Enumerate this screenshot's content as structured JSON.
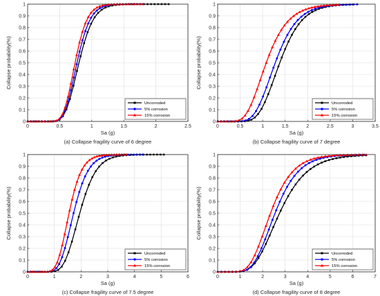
{
  "chart_data": [
    {
      "type": "line",
      "caption": "(a) Collapse fragility curve of 6 degree",
      "xlabel": "Sa (g)",
      "ylabel": "Collapse probability(%)",
      "xlim": [
        0,
        2.5
      ],
      "ylim": [
        0,
        1
      ],
      "xticks": [
        "0",
        "0.5",
        "1",
        "1.5",
        "2",
        "2.5"
      ],
      "yticks": [
        "0",
        "0.1",
        "0.2",
        "0.3",
        "0.4",
        "0.5",
        "0.6",
        "0.7",
        "0.8",
        "0.9",
        "1"
      ],
      "grid": true,
      "legend_position": "bottom-right",
      "series": [
        {
          "name": "Uncorroded",
          "color": "#000000",
          "marker": "square",
          "median": 0.8,
          "beta": 0.22,
          "xmax": 2.2
        },
        {
          "name": "5% corrosion",
          "color": "#0000ff",
          "marker": "circle",
          "median": 0.77,
          "beta": 0.21,
          "xmax": 1.8
        },
        {
          "name": "15% corrosion",
          "color": "#ff0000",
          "marker": "triangle",
          "median": 0.74,
          "beta": 0.2,
          "xmax": 1.8
        }
      ]
    },
    {
      "type": "line",
      "caption": "(b) Collapse fragility curve of 7 degree",
      "xlabel": "Sa (g)",
      "ylabel": "Collapse probability(%)",
      "xlim": [
        0,
        3.5
      ],
      "ylim": [
        0,
        1
      ],
      "xticks": [
        "0",
        "0.5",
        "1",
        "1.5",
        "2",
        "2.5",
        "3",
        "3.5"
      ],
      "yticks": [
        "0",
        "0.1",
        "0.2",
        "0.3",
        "0.4",
        "0.5",
        "0.6",
        "0.7",
        "0.8",
        "0.9",
        "1"
      ],
      "grid": true,
      "legend_position": "bottom-right",
      "series": [
        {
          "name": "Uncorroded",
          "color": "#000000",
          "marker": "square",
          "median": 1.38,
          "beta": 0.28,
          "xmax": 3.0
        },
        {
          "name": "5% corrosion",
          "color": "#0000ff",
          "marker": "circle",
          "median": 1.28,
          "beta": 0.3,
          "xmax": 3.1
        },
        {
          "name": "15% corrosion",
          "color": "#ff0000",
          "marker": "triangle",
          "median": 1.08,
          "beta": 0.35,
          "xmax": 2.7
        }
      ]
    },
    {
      "type": "line",
      "caption": "(c) Collapse fragility curve of 7.5 degree",
      "xlabel": "Sa (g)",
      "ylabel": "Collapse probability(%)",
      "xlim": [
        0,
        6
      ],
      "ylim": [
        0,
        1
      ],
      "xticks": [
        "0",
        "1",
        "2",
        "3",
        "4",
        "5",
        "6"
      ],
      "yticks": [
        "0",
        "0.1",
        "0.2",
        "0.3",
        "0.4",
        "0.5",
        "0.6",
        "0.7",
        "0.8",
        "0.9",
        "1"
      ],
      "grid": true,
      "legend_position": "bottom-right",
      "series": [
        {
          "name": "Uncorroded",
          "color": "#000000",
          "marker": "square",
          "median": 1.95,
          "beta": 0.25,
          "xmax": 5.1
        },
        {
          "name": "5% corrosion",
          "color": "#0000ff",
          "marker": "circle",
          "median": 1.72,
          "beta": 0.25,
          "xmax": 4.3
        },
        {
          "name": "15% corrosion",
          "color": "#ff0000",
          "marker": "triangle",
          "median": 1.55,
          "beta": 0.24,
          "xmax": 3.7
        }
      ]
    },
    {
      "type": "line",
      "caption": "(d) Collapse fragility curve of 8 degree",
      "xlabel": "Sa (g)",
      "ylabel": "Collapse probability(%)",
      "xlim": [
        0,
        7
      ],
      "ylim": [
        0,
        1
      ],
      "xticks": [
        "0",
        "1",
        "2",
        "3",
        "4",
        "5",
        "6",
        "7"
      ],
      "yticks": [
        "0",
        "0.1",
        "0.2",
        "0.3",
        "0.4",
        "0.5",
        "0.6",
        "0.7",
        "0.8",
        "0.9",
        "1"
      ],
      "grid": true,
      "legend_position": "bottom-right",
      "series": [
        {
          "name": "Uncorroded",
          "color": "#000000",
          "marker": "square",
          "median": 2.75,
          "beta": 0.35,
          "xmax": 6.6
        },
        {
          "name": "5% corrosion",
          "color": "#0000ff",
          "marker": "circle",
          "median": 2.55,
          "beta": 0.32,
          "xmax": 6.5
        },
        {
          "name": "15% corrosion",
          "color": "#ff0000",
          "marker": "triangle",
          "median": 2.35,
          "beta": 0.33,
          "xmax": 6.6
        }
      ]
    }
  ]
}
